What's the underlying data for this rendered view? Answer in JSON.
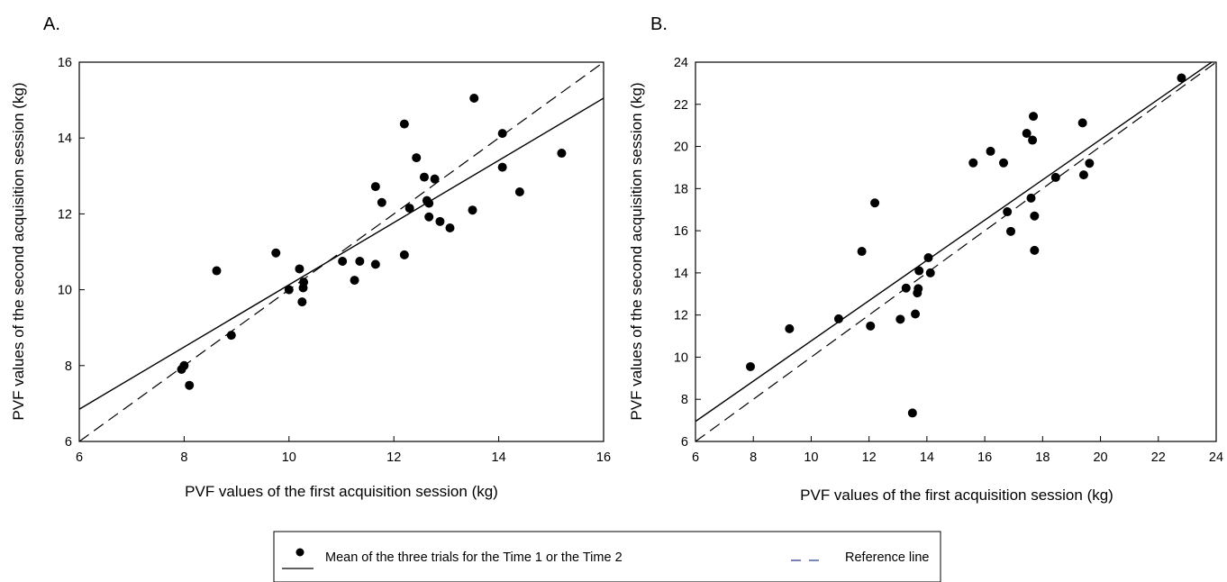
{
  "legend": {
    "point_label": "Mean of the three trials for the Time 1 or the Time 2",
    "reference_label": "Reference line",
    "point_color": "#000000",
    "fit_line_color": "#000000",
    "reference_line_color": "#2c3e91"
  },
  "chart_data": [
    {
      "type": "scatter",
      "panel_label": "A.",
      "xlabel": "PVF values of the first acquisition session (kg)",
      "ylabel": "PVF values of the second acquisition session (kg)",
      "xlim": [
        6,
        16
      ],
      "ylim": [
        6,
        16
      ],
      "xticks": [
        6,
        8,
        10,
        12,
        14,
        16
      ],
      "yticks": [
        6,
        8,
        10,
        12,
        14,
        16
      ],
      "grid": false,
      "points": [
        [
          7.95,
          7.9
        ],
        [
          8.0,
          8.0
        ],
        [
          8.1,
          7.48
        ],
        [
          8.62,
          10.5
        ],
        [
          8.9,
          8.8
        ],
        [
          9.75,
          10.97
        ],
        [
          10.0,
          10.0
        ],
        [
          10.2,
          10.55
        ],
        [
          10.27,
          10.05
        ],
        [
          10.28,
          10.2
        ],
        [
          10.25,
          9.68
        ],
        [
          11.02,
          10.75
        ],
        [
          11.25,
          10.25
        ],
        [
          11.35,
          10.75
        ],
        [
          11.65,
          10.67
        ],
        [
          11.65,
          12.72
        ],
        [
          11.77,
          12.3
        ],
        [
          12.2,
          10.92
        ],
        [
          12.2,
          14.37
        ],
        [
          12.3,
          12.15
        ],
        [
          12.43,
          13.48
        ],
        [
          12.58,
          12.97
        ],
        [
          12.63,
          12.35
        ],
        [
          12.67,
          12.28
        ],
        [
          12.67,
          11.92
        ],
        [
          12.78,
          12.92
        ],
        [
          12.88,
          11.8
        ],
        [
          13.07,
          11.63
        ],
        [
          13.5,
          12.1
        ],
        [
          13.53,
          15.05
        ],
        [
          14.07,
          14.12
        ],
        [
          14.07,
          13.23
        ],
        [
          14.4,
          12.58
        ],
        [
          15.2,
          13.6
        ]
      ],
      "fit_line": [
        [
          6,
          6.85
        ],
        [
          16,
          15.05
        ]
      ],
      "reference_line": [
        [
          6,
          6
        ],
        [
          16,
          16
        ]
      ]
    },
    {
      "type": "scatter",
      "panel_label": "B.",
      "xlabel": "PVF values of the first acquisition session (kg)",
      "ylabel": "PVF values of the  second acquisition session (kg)",
      "xlim": [
        6,
        24
      ],
      "ylim": [
        6,
        24
      ],
      "xticks": [
        6,
        8,
        10,
        12,
        14,
        16,
        18,
        20,
        22,
        24
      ],
      "yticks": [
        6,
        8,
        10,
        12,
        14,
        16,
        18,
        20,
        22,
        24
      ],
      "grid": false,
      "points": [
        [
          7.9,
          9.55
        ],
        [
          9.25,
          11.35
        ],
        [
          10.95,
          11.82
        ],
        [
          11.75,
          15.02
        ],
        [
          12.05,
          11.48
        ],
        [
          12.2,
          17.32
        ],
        [
          13.08,
          11.8
        ],
        [
          13.28,
          13.28
        ],
        [
          13.5,
          7.35
        ],
        [
          13.6,
          12.05
        ],
        [
          13.67,
          13.05
        ],
        [
          13.7,
          13.25
        ],
        [
          13.73,
          14.1
        ],
        [
          14.05,
          14.72
        ],
        [
          14.12,
          14.0
        ],
        [
          15.6,
          19.22
        ],
        [
          16.2,
          19.77
        ],
        [
          16.65,
          19.22
        ],
        [
          16.78,
          16.9
        ],
        [
          16.9,
          15.97
        ],
        [
          17.45,
          20.62
        ],
        [
          17.6,
          17.55
        ],
        [
          17.65,
          20.3
        ],
        [
          17.68,
          21.43
        ],
        [
          17.72,
          16.7
        ],
        [
          17.72,
          15.07
        ],
        [
          18.45,
          18.53
        ],
        [
          19.38,
          21.12
        ],
        [
          19.42,
          18.65
        ],
        [
          19.62,
          19.2
        ],
        [
          22.8,
          23.25
        ]
      ],
      "fit_line": [
        [
          6,
          6.95
        ],
        [
          24,
          24.15
        ]
      ],
      "reference_line": [
        [
          6,
          6
        ],
        [
          24,
          24
        ]
      ]
    }
  ]
}
